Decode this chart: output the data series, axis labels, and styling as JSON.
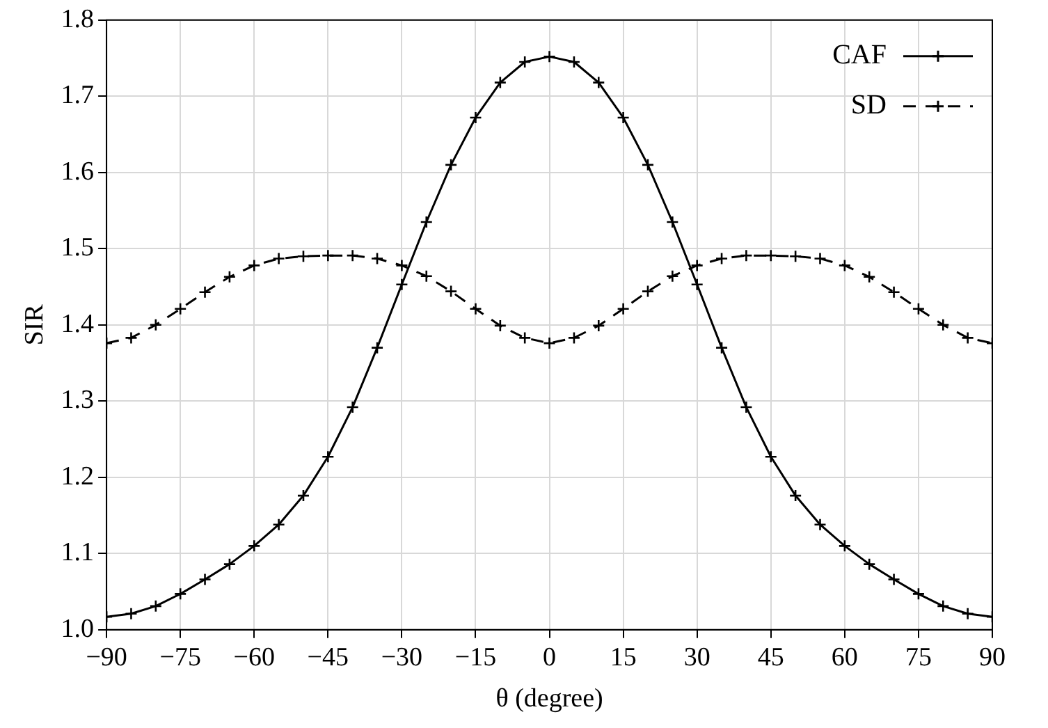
{
  "chart_data": {
    "type": "line",
    "xlabel": "θ (degree)",
    "ylabel": "SIR",
    "x": [
      -90,
      -85,
      -80,
      -75,
      -70,
      -65,
      -60,
      -55,
      -50,
      -45,
      -40,
      -35,
      -30,
      -25,
      -20,
      -15,
      -10,
      -5,
      0,
      5,
      10,
      15,
      20,
      25,
      30,
      35,
      40,
      45,
      50,
      55,
      60,
      65,
      70,
      75,
      80,
      85,
      90
    ],
    "series": [
      {
        "name": "CAF",
        "color": "#000000",
        "line_style": "solid",
        "values": [
          1.017,
          1.021,
          1.031,
          1.047,
          1.066,
          1.086,
          1.11,
          1.138,
          1.176,
          1.227,
          1.292,
          1.37,
          1.453,
          1.535,
          1.61,
          1.672,
          1.718,
          1.745,
          1.752,
          1.745,
          1.718,
          1.672,
          1.61,
          1.535,
          1.453,
          1.37,
          1.292,
          1.227,
          1.176,
          1.138,
          1.11,
          1.086,
          1.066,
          1.047,
          1.031,
          1.021,
          1.017
        ]
      },
      {
        "name": "SD",
        "color": "#000000",
        "line_style": "dashed",
        "values": [
          1.376,
          1.383,
          1.4,
          1.421,
          1.443,
          1.463,
          1.478,
          1.487,
          1.49,
          1.491,
          1.491,
          1.487,
          1.478,
          1.464,
          1.444,
          1.421,
          1.399,
          1.383,
          1.376,
          1.383,
          1.399,
          1.421,
          1.444,
          1.464,
          1.478,
          1.487,
          1.491,
          1.491,
          1.49,
          1.487,
          1.478,
          1.463,
          1.443,
          1.421,
          1.4,
          1.383,
          1.376
        ]
      }
    ],
    "xlim": [
      -90,
      90
    ],
    "xticks": [
      {
        "value": -90,
        "label": "−90"
      },
      {
        "value": -75,
        "label": "−75"
      },
      {
        "value": -60,
        "label": "−60"
      },
      {
        "value": -45,
        "label": "−45"
      },
      {
        "value": -30,
        "label": "−30"
      },
      {
        "value": -15,
        "label": "−15"
      },
      0,
      15,
      30,
      45,
      60,
      75,
      90
    ],
    "ylim": [
      1.0,
      1.8
    ],
    "yticks": [
      {
        "value": 1.0,
        "label": "1.0"
      },
      1.1,
      1.2,
      1.3,
      1.4,
      1.5,
      1.6,
      1.7,
      1.8
    ],
    "grid": true,
    "legend": "top right",
    "marker": "cross"
  }
}
